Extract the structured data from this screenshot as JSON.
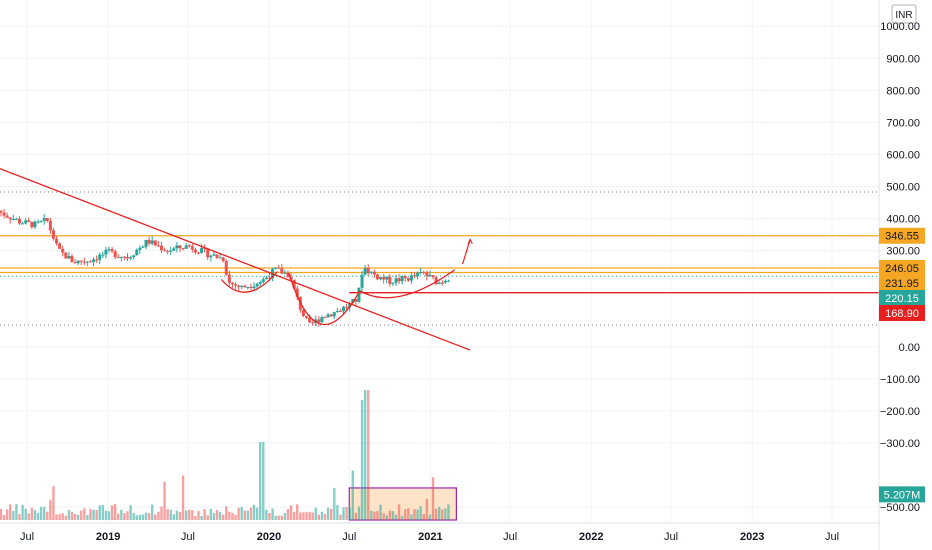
{
  "currency": "INR",
  "chart_data": {
    "type": "candlestick",
    "x_ticks": [
      {
        "label": "Jul",
        "date": "2018-07"
      },
      {
        "label": "2019",
        "date": "2019-01",
        "year": true
      },
      {
        "label": "Jul",
        "date": "2019-07"
      },
      {
        "label": "2020",
        "date": "2020-01",
        "year": true
      },
      {
        "label": "Jul",
        "date": "2020-07"
      },
      {
        "label": "2021",
        "date": "2021-01",
        "year": true
      },
      {
        "label": "Jul",
        "date": "2021-07"
      },
      {
        "label": "2022",
        "date": "2022-01",
        "year": true
      },
      {
        "label": "Jul",
        "date": "2022-07"
      },
      {
        "label": "2023",
        "date": "2023-01",
        "year": true
      },
      {
        "label": "Jul",
        "date": "2023-07"
      }
    ],
    "y_ticks": [
      {
        "label": "1000.00",
        "value": 1000
      },
      {
        "label": "900.00",
        "value": 900
      },
      {
        "label": "800.00",
        "value": 800
      },
      {
        "label": "700.00",
        "value": 700
      },
      {
        "label": "600.00",
        "value": 600
      },
      {
        "label": "500.00",
        "value": 500
      },
      {
        "label": "400.00",
        "value": 400
      },
      {
        "label": "300.00",
        "value": 300
      },
      {
        "label": "0.00",
        "value": 0
      },
      {
        "label": "−100.00",
        "value": -100
      },
      {
        "label": "−200.00",
        "value": -200
      },
      {
        "label": "−300.00",
        "value": -300
      },
      {
        "label": "−500.00",
        "value": -500
      }
    ],
    "ylim": [
      -540,
      1060
    ],
    "price_labels": [
      {
        "label": "346.55",
        "value": 346.55,
        "color": "#f5a623",
        "text": "dark"
      },
      {
        "label": "246.05",
        "value": 246.05,
        "color": "#f5a623",
        "text": "dark"
      },
      {
        "label": "231.95",
        "value": 231.95,
        "color": "#f5a623",
        "text": "dark"
      },
      {
        "label": "220.15",
        "value": 220.15,
        "color": "#26a69a",
        "text": "light"
      },
      {
        "label": "168.90",
        "value": 168.9,
        "color": "#e91e1e",
        "text": "light"
      }
    ],
    "volume_label": {
      "label": "5.207M",
      "value": -460,
      "color": "#26a69a"
    },
    "horizontal_lines": [
      {
        "value": 346.55,
        "color": "#f5a623",
        "style": "solid"
      },
      {
        "value": 246.05,
        "color": "#f5a623",
        "style": "solid"
      },
      {
        "value": 231.95,
        "color": "#f5a623",
        "style": "solid"
      },
      {
        "value": 220.15,
        "color": "#26a69a",
        "style": "dotted"
      },
      {
        "value": 168.9,
        "color": "#e91e1e",
        "style": "solid",
        "from": "2020-07"
      },
      {
        "value": 483,
        "color": "#787b86",
        "style": "dotted"
      },
      {
        "value": 68,
        "color": "#787b86",
        "style": "dotted"
      }
    ],
    "trendline": {
      "from": [
        "2018-03",
        588
      ],
      "to": [
        "2021-04",
        -10
      ],
      "color": "#e91e1e"
    },
    "volume_box": {
      "from": "2020-07",
      "to": "2021-03",
      "top": -440,
      "color": "#9c27b0",
      "fill": "#fde4c8"
    },
    "up_color": "#26a69a",
    "down_color": "#ef5350",
    "grid": true
  }
}
